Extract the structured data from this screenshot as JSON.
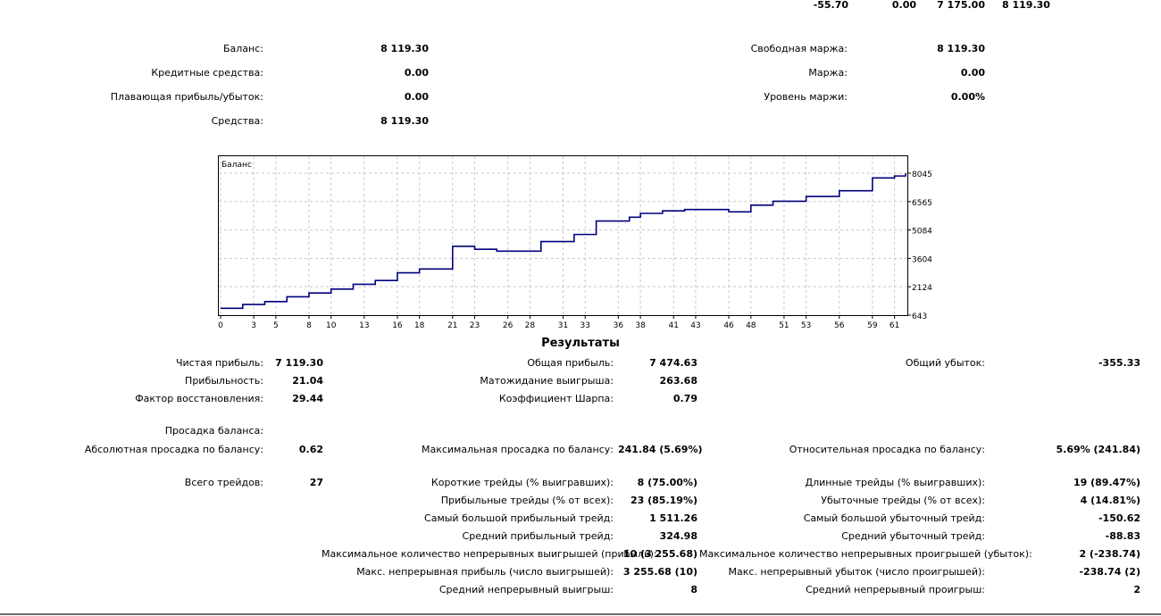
{
  "top_row": [
    "-55.70",
    "0.00",
    "7 175.00",
    "8 119.30"
  ],
  "account": {
    "balance_label": "Баланс:",
    "balance": "8 119.30",
    "credit_label": "Кредитные средства:",
    "credit": "0.00",
    "floating_label": "Плавающая прибыль/убыток:",
    "floating": "0.00",
    "equity_label": "Средства:",
    "equity": "8 119.30",
    "free_margin_label": "Свободная маржа:",
    "free_margin": "8 119.30",
    "margin_label": "Маржа:",
    "margin": "0.00",
    "margin_level_label": "Уровень маржи:",
    "margin_level": "0.00%"
  },
  "chart_data": {
    "type": "line",
    "title": "Баланс",
    "series_name": "Баланс",
    "x_ticks": [
      0,
      3,
      5,
      8,
      10,
      13,
      16,
      18,
      21,
      23,
      26,
      28,
      31,
      33,
      36,
      38,
      41,
      43,
      46,
      48,
      51,
      53,
      56,
      59,
      61
    ],
    "y_ticks": [
      643,
      2124,
      3604,
      5084,
      6565,
      8045
    ],
    "xlim": [
      0,
      62
    ],
    "ylim": [
      643,
      8600
    ],
    "x": [
      0,
      1,
      2,
      3,
      4,
      5,
      6,
      7,
      8,
      9,
      10,
      11,
      12,
      13,
      14,
      15,
      16,
      17,
      18,
      19,
      20,
      21,
      22,
      23,
      24,
      25,
      26,
      27,
      28,
      29,
      30,
      31,
      32,
      33,
      34,
      35,
      36,
      37,
      38,
      39,
      40,
      41,
      42,
      43,
      44,
      45,
      46,
      47,
      48,
      49,
      50,
      51,
      52,
      53,
      54,
      55,
      56,
      57,
      58,
      59,
      60,
      61,
      62
    ],
    "values": [
      1000,
      1000,
      1200,
      1200,
      1350,
      1350,
      1600,
      1600,
      1800,
      1800,
      2000,
      2000,
      2250,
      2250,
      2450,
      2450,
      2850,
      2850,
      3050,
      3050,
      3050,
      4230,
      4230,
      4080,
      4080,
      3980,
      3980,
      3980,
      3980,
      4480,
      4480,
      4480,
      4850,
      4850,
      5550,
      5550,
      5550,
      5750,
      5950,
      5950,
      6080,
      6080,
      6150,
      6150,
      6150,
      6150,
      6030,
      6030,
      6380,
      6380,
      6580,
      6580,
      6580,
      6830,
      6830,
      6830,
      7130,
      7130,
      7130,
      7800,
      7800,
      7900,
      8045
    ]
  },
  "results": {
    "title": "Результаты",
    "net_profit_label": "Чистая прибыль:",
    "net_profit": "7 119.30",
    "gross_profit_label": "Общая прибыль:",
    "gross_profit": "7 474.63",
    "gross_loss_label": "Общий убыток:",
    "gross_loss": "-355.33",
    "profit_factor_label": "Прибыльность:",
    "profit_factor": "21.04",
    "expected_payoff_label": "Матожидание выигрыша:",
    "expected_payoff": "263.68",
    "recovery_factor_label": "Фактор восстановления:",
    "recovery_factor": "29.44",
    "sharpe_label": "Коэффициент Шарпа:",
    "sharpe": "0.79",
    "drawdown_header": "Просадка баланса:",
    "abs_dd_label": "Абсолютная просадка по балансу:",
    "abs_dd": "0.62",
    "max_dd_label": "Максимальная просадка по балансу:",
    "max_dd": "241.84 (5.69%)",
    "rel_dd_label": "Относительная просадка по балансу:",
    "rel_dd": "5.69% (241.84)",
    "total_trades_label": "Всего трейдов:",
    "total_trades": "27",
    "short_label": "Короткие трейды (% выигравших):",
    "short": "8 (75.00%)",
    "long_label": "Длинные трейды (% выигравших):",
    "long": "19 (89.47%)",
    "profit_trades_label": "Прибыльные трейды (% от всех):",
    "profit_trades": "23 (85.19%)",
    "loss_trades_label": "Убыточные трейды (% от всех):",
    "loss_trades": "4 (14.81%)",
    "largest_profit_label": "Самый большой прибыльный трейд:",
    "largest_profit": "1 511.26",
    "largest_loss_label": "Самый большой убыточный трейд:",
    "largest_loss": "-150.62",
    "avg_profit_label": "Средний прибыльный трейд:",
    "avg_profit": "324.98",
    "avg_loss_label": "Средний убыточный трейд:",
    "avg_loss": "-88.83",
    "max_cons_wins_label": "Максимальное количество непрерывных выигрышей (прибыль):",
    "max_cons_wins": "10 (3 255.68)",
    "max_cons_losses_label": "Максимальное количество непрерывных проигрышей (убыток):",
    "max_cons_losses": "2 (-238.74)",
    "max_cons_profit_label": "Макс. непрерывная прибыль (число выигрышей):",
    "max_cons_profit": "3 255.68 (10)",
    "max_cons_loss_label": "Макс. непрерывный убыток (число проигрышей):",
    "max_cons_loss": "-238.74 (2)",
    "avg_cons_wins_label": "Средний непрерывный выигрыш:",
    "avg_cons_wins": "8",
    "avg_cons_losses_label": "Средний непрерывный проигрыш:",
    "avg_cons_losses": "2"
  },
  "colors": {
    "line": "#00007f",
    "grid": "#c8c8c8",
    "border": "#000000"
  }
}
